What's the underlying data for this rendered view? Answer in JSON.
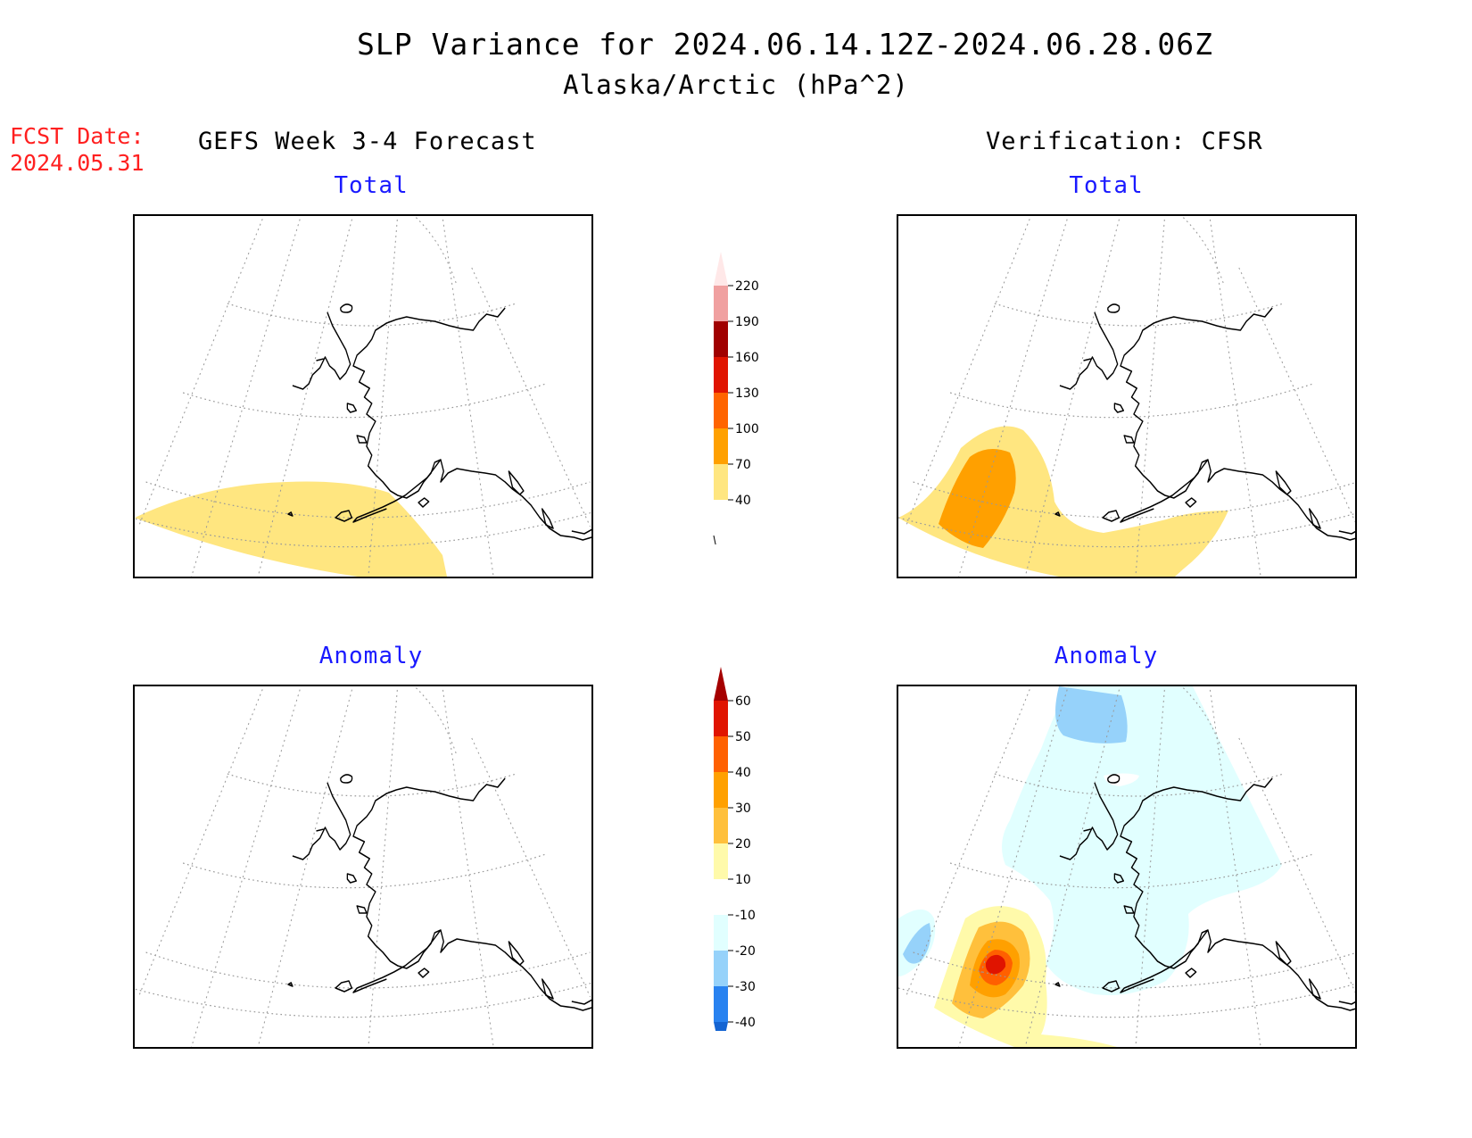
{
  "title": "SLP Variance for 2024.06.14.12Z-2024.06.28.06Z",
  "subtitle": "Alaska/Arctic (hPa^2)",
  "fcst_date_label": "FCST Date:",
  "fcst_date_value": "2024.05.31",
  "left_column_title": "GEFS Week 3-4 Forecast",
  "right_column_title": "Verification: CFSR",
  "panels": {
    "forecast_total": {
      "label": "Total"
    },
    "verification_total": {
      "label": "Total"
    },
    "forecast_anomaly": {
      "label": "Anomaly"
    },
    "verification_anomaly": {
      "label": "Anomaly"
    }
  },
  "total_colorbar": {
    "ticks": [
      "40",
      "70",
      "100",
      "130",
      "160",
      "190",
      "220"
    ],
    "colors": [
      "#ffe680",
      "#ffa000",
      "#ff6400",
      "#e01400",
      "#a00000",
      "#f0a0a0",
      "#ffe8e8"
    ]
  },
  "anomaly_colorbar": {
    "ticks": [
      "-40",
      "-30",
      "-20",
      "-10",
      "10",
      "20",
      "30",
      "40",
      "50",
      "60"
    ],
    "colors": [
      "#1464d2",
      "#2882f0",
      "#96d2fa",
      "#e1ffff",
      "#ffffff",
      "#fffaaa",
      "#ffc03c",
      "#ffa000",
      "#ff6000",
      "#e01400",
      "#a50000"
    ]
  },
  "colors": {
    "title_red": "#ff2020",
    "panel_label_blue": "#1a1aff"
  }
}
